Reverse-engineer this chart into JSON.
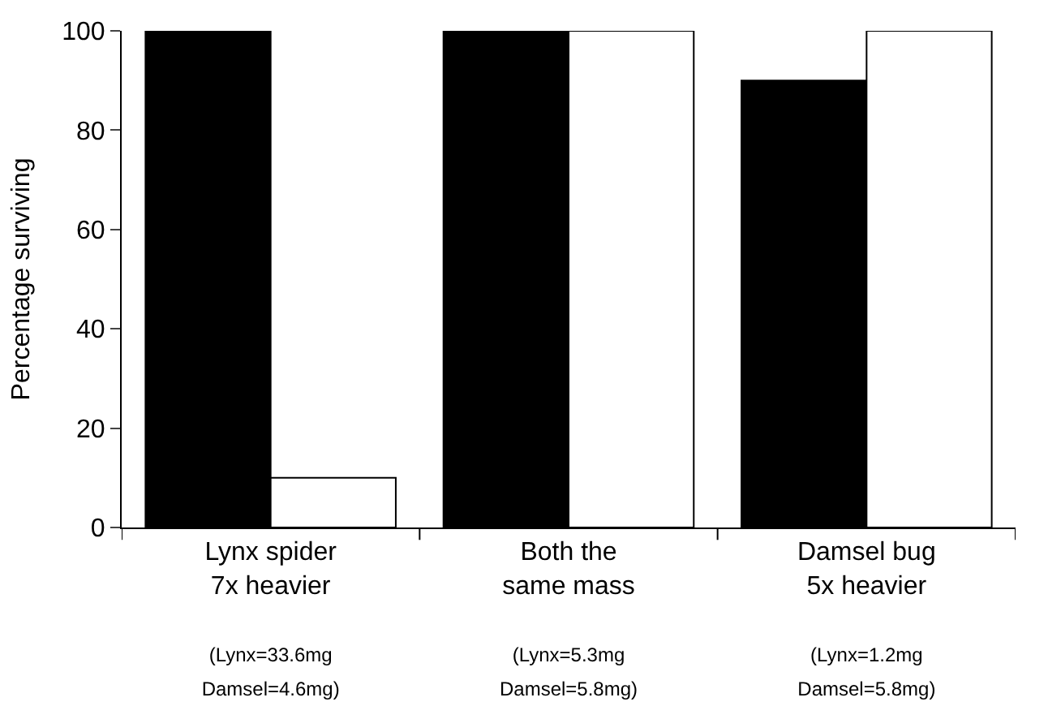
{
  "chart_data": {
    "type": "bar",
    "ylabel": "Percentage surviving",
    "categories": [
      "Lynx spider\n7x heavier\n\n(Lynx=33.6mg\nDamsel=4.6mg)",
      "Both the\nsame mass\n\n(Lynx=5.3mg\nDamsel=5.8mg)",
      "Damsel bug\n5x heavier\n\n(Lynx=1.2mg\nDamsel=5.8mg)"
    ],
    "series": [
      {
        "color": "#000000",
        "values": [
          100,
          100,
          90
        ]
      },
      {
        "color": "#ffffff",
        "values": [
          10,
          100,
          100
        ]
      }
    ],
    "ylim": [
      0,
      100
    ],
    "yticks": [
      0,
      20,
      40,
      60,
      80,
      100
    ]
  }
}
